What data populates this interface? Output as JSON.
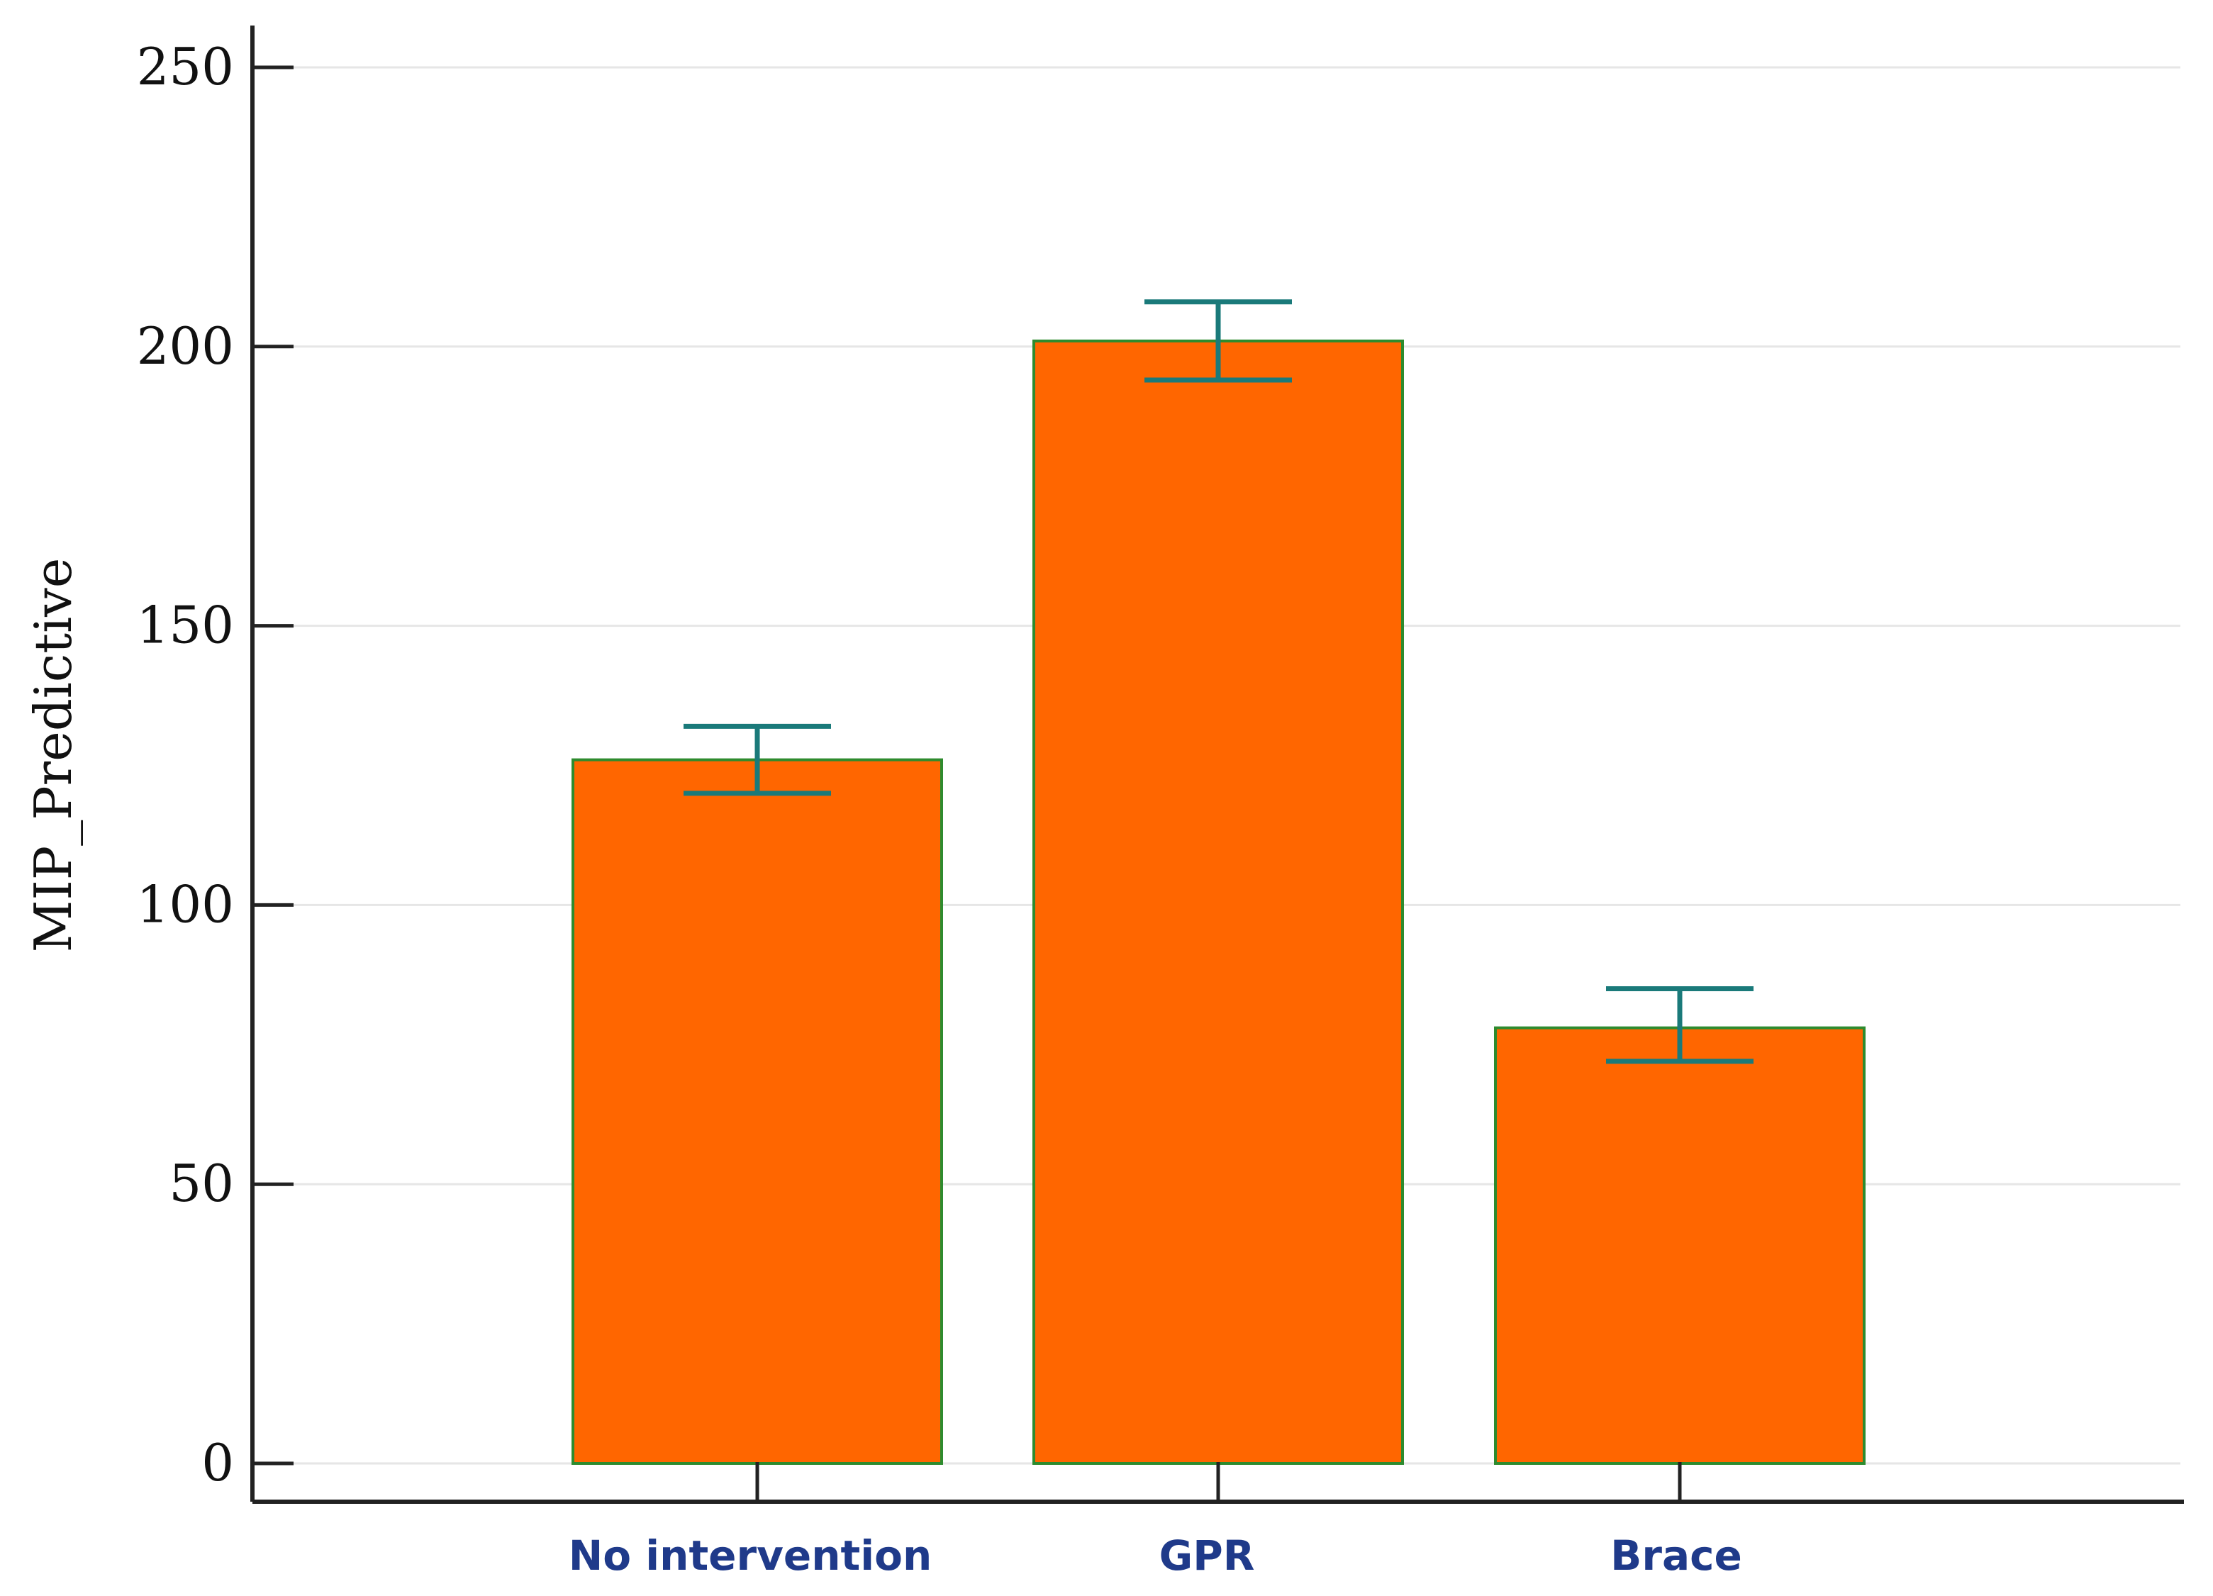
{
  "chart_data": {
    "type": "bar",
    "categories": [
      "No intervention",
      "GPR",
      "Brace"
    ],
    "values": [
      126,
      201,
      78
    ],
    "error_upper": [
      132,
      208,
      85
    ],
    "error_lower": [
      120,
      194,
      72
    ],
    "title": "",
    "xlabel": "",
    "ylabel": "MIP_Predictive",
    "ylim": [
      0,
      250
    ],
    "y_ticks": [
      0,
      50,
      100,
      150,
      200,
      250
    ],
    "y_tick_labels": [
      "0",
      "50",
      "100",
      "150",
      "200",
      "250"
    ],
    "grid": true,
    "legend": "none",
    "colors": {
      "bar_fill": "#ff6600",
      "bar_edge": "#2e8b2e",
      "error_bar": "#1a7a7a",
      "axis": "#222222",
      "grid": "#e6e6e6",
      "x_label": "#1f3a8a"
    }
  }
}
